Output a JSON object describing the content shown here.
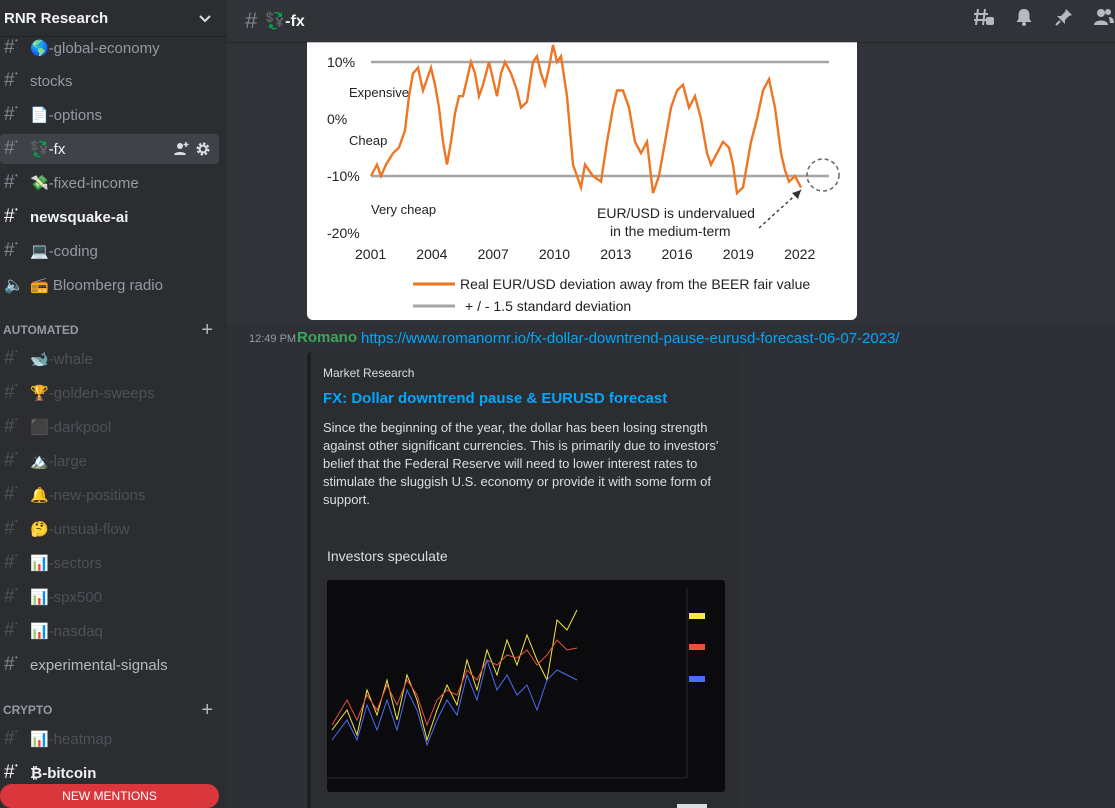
{
  "server": {
    "name": "RNR Research"
  },
  "sidebar": {
    "channels": [
      {
        "label": "🌎-global-economy",
        "style": "normal"
      },
      {
        "label": "stocks",
        "style": "normal"
      },
      {
        "label": "📄-options",
        "style": "normal"
      },
      {
        "label": "💱-fx",
        "style": "selected"
      },
      {
        "label": "💸-fixed-income",
        "style": "normal"
      },
      {
        "label": "newsquake-ai",
        "style": "bright"
      },
      {
        "label": "💻-coding",
        "style": "normal"
      },
      {
        "label": "📻 Bloomberg radio",
        "style": "normal"
      }
    ],
    "categories": {
      "automated": "AUTOMATED",
      "crypto": "CRYPTO"
    },
    "automated_channels": [
      {
        "label": "🐋-whale"
      },
      {
        "label": "🏆-golden-sweeps"
      },
      {
        "label": "⬛-darkpool"
      },
      {
        "label": "🏔️-large"
      },
      {
        "label": "🔔-new-positions"
      },
      {
        "label": "🤔-unsual-flow"
      },
      {
        "label": "📊-sectors"
      },
      {
        "label": "📊-spx500"
      },
      {
        "label": "📊-nasdaq"
      }
    ],
    "experimental": "experimental-signals",
    "crypto_channels": [
      {
        "label": "📊-heatmap",
        "style": "muted"
      },
      {
        "label": "₿-bitcoin",
        "style": "bright"
      }
    ],
    "new_mentions": "NEW MENTIONS"
  },
  "topbar": {
    "channel": "💱-fx"
  },
  "chart_image": {
    "chart_data": {
      "type": "line",
      "x_ticks": [
        "2001",
        "2004",
        "2007",
        "2010",
        "2013",
        "2016",
        "2019",
        "2022"
      ],
      "y_ticks": [
        "10%",
        "0%",
        "-10%",
        "-20%"
      ],
      "annotations": [
        "Expensive",
        "Cheap",
        "Very cheap",
        "EUR/USD is undervalued",
        "in the medium-term"
      ],
      "series": [
        {
          "name": "Real EUR/USD deviation away from the BEER fair value",
          "color": "#ee7623"
        },
        {
          "name": "+ / - 1.5 standard deviation",
          "color": "#a6a6a6"
        }
      ],
      "bands": [
        10,
        -10
      ],
      "ylim": [
        -20,
        15
      ]
    }
  },
  "message": {
    "time": "12:49 PM",
    "author": "Romano",
    "link": "https://www.romanornr.io/fx-dollar-downtrend-pause-eurusd-forecast-06-07-2023/",
    "embed": {
      "provider": "Market Research",
      "title": "FX: Dollar downtrend pause & EURUSD forecast",
      "description": "Since the beginning of the year, the dollar has been losing strength against other significant currencies. This is primarily due to investors' belief that the Federal Reserve will need to lower interest rates to stimulate the sluggish U.S. economy or provide it with some form of support.",
      "subheading": "Investors speculate"
    }
  }
}
